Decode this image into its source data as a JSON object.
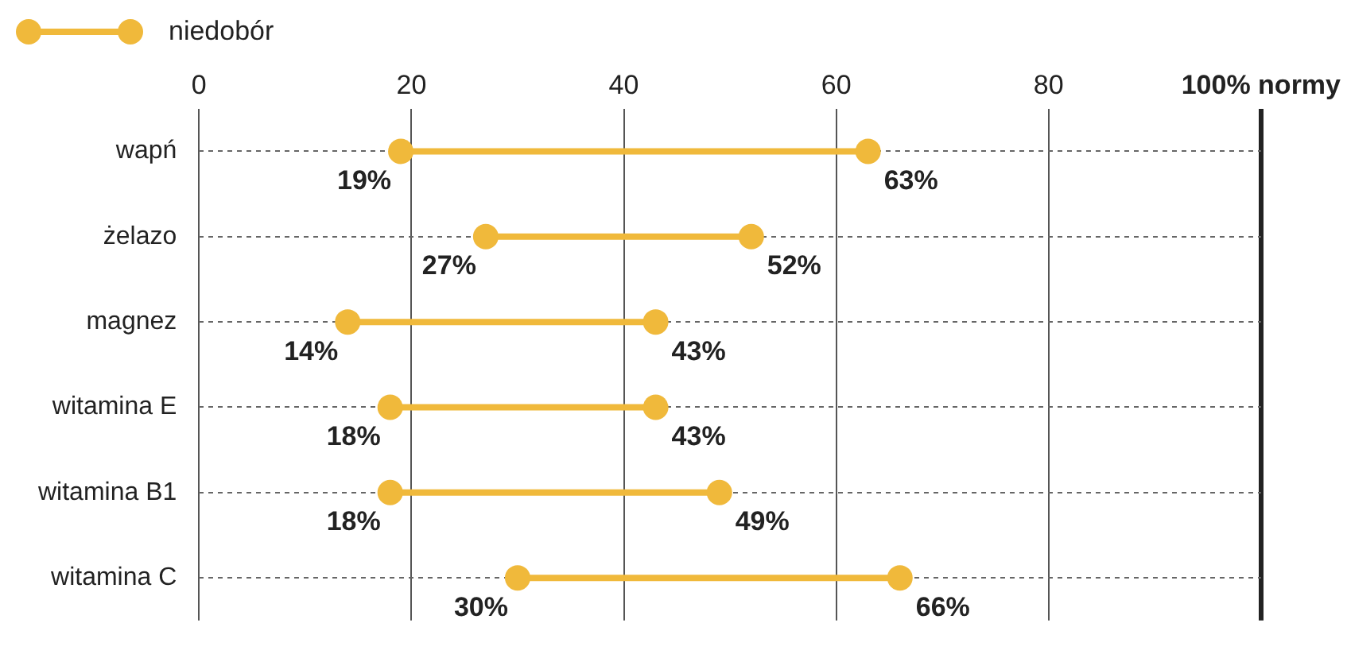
{
  "chart_data": {
    "type": "scatter",
    "orientation": "horizontal",
    "categories": [
      "wapń",
      "żelazo",
      "magnez",
      "witamina E",
      "witamina B1",
      "witamina C"
    ],
    "series": [
      {
        "name": "niedobór",
        "color": "#f0b93b",
        "values": [
          19,
          27,
          14,
          18,
          18,
          30
        ],
        "value_labels": [
          "19%",
          "27%",
          "14%",
          "18%",
          "18%",
          "30%"
        ]
      },
      {
        "color": "#f0b93b",
        "values": [
          63,
          52,
          43,
          43,
          49,
          66
        ],
        "value_labels": [
          "63%",
          "52%",
          "43%",
          "43%",
          "49%",
          "66%"
        ]
      }
    ],
    "xlim": [
      0,
      100
    ],
    "xticks": [
      0,
      20,
      40,
      60,
      80,
      {
        "value": 100,
        "label": "100% normy"
      }
    ],
    "grid": true,
    "legend": "top left",
    "marker": "circle"
  }
}
